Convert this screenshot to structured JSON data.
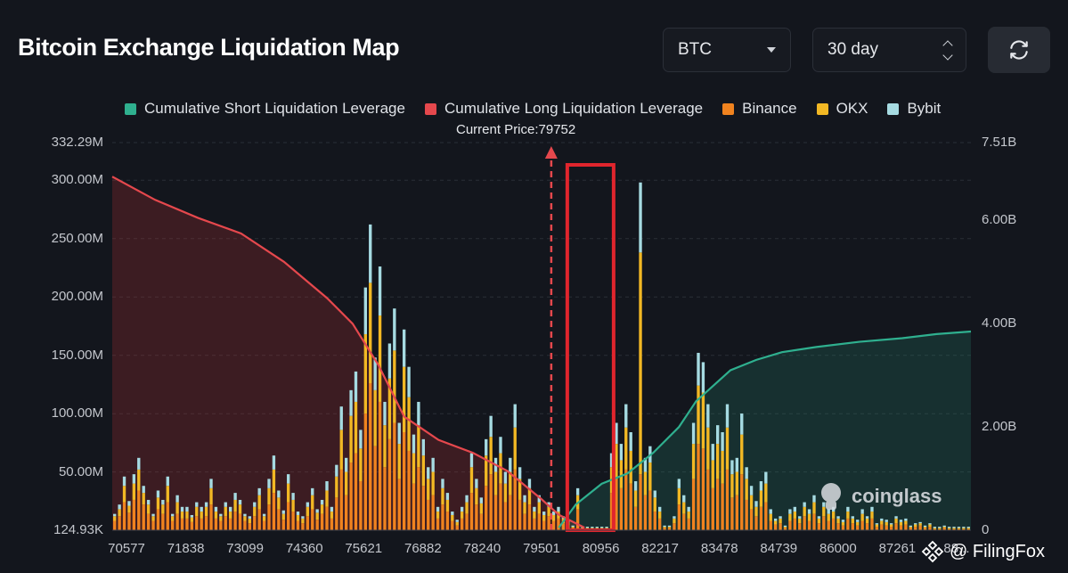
{
  "header": {
    "title": "Bitcoin Exchange Liquidation Map",
    "coin_select": "BTC",
    "range_select": "30 day"
  },
  "legend": [
    {
      "label": "Cumulative Short Liquidation Leverage",
      "color": "#2fb08f"
    },
    {
      "label": "Cumulative Long Liquidation Leverage",
      "color": "#e5484d"
    },
    {
      "label": "Binance",
      "color": "#f0831f"
    },
    {
      "label": "OKX",
      "color": "#f2b824"
    },
    {
      "label": "Bybit",
      "color": "#a6dbe2"
    }
  ],
  "current_price_label": "Current Price:79752",
  "watermarks": {
    "coinglass": "coinglass",
    "filingfox": "@ FilingFox"
  },
  "chart_data": {
    "type": "bar",
    "x_ticks": [
      "70577",
      "71838",
      "73099",
      "74360",
      "75621",
      "76882",
      "78240",
      "79501",
      "80956",
      "82217",
      "83478",
      "84739",
      "86000",
      "87261",
      "88..."
    ],
    "y_left_ticks": [
      "332.29M",
      "300.00M",
      "250.00M",
      "200.00M",
      "150.00M",
      "100.00M",
      "50.00M",
      "124.93K"
    ],
    "y_right_ticks": [
      "7.51B",
      "6.00B",
      "4.00B",
      "2.00B",
      "0"
    ],
    "ylim_left_millions": [
      0.125,
      332.29
    ],
    "ylim_right_billions": [
      0,
      7.51
    ],
    "current_price": 79752,
    "series": [
      {
        "name": "Binance",
        "color": "#f0831f",
        "values": [
          8,
          12,
          24,
          15,
          26,
          34,
          22,
          14,
          8,
          18,
          14,
          24,
          8,
          14,
          10,
          10,
          7,
          12,
          10,
          12,
          22,
          10,
          8,
          12,
          10,
          16,
          14,
          8,
          6,
          12,
          18,
          8,
          22,
          32,
          18,
          9,
          24,
          16,
          8,
          6,
          12,
          18,
          9,
          14,
          20,
          10,
          28,
          52,
          30,
          58,
          66,
          42,
          100,
          126,
          72,
          110,
          54,
          78,
          92,
          44,
          84,
          68,
          40,
          54,
          38,
          26,
          30,
          10,
          22,
          16,
          8,
          4,
          10,
          14,
          32,
          22,
          14,
          38,
          48,
          30,
          40,
          24,
          30,
          52,
          26,
          14,
          22,
          10,
          14,
          8,
          12,
          8,
          10,
          6,
          4,
          2,
          18,
          1,
          1,
          1,
          1,
          1,
          1,
          32,
          44,
          36,
          52,
          40,
          20,
          48,
          30,
          34,
          16,
          10,
          2,
          2,
          6,
          22,
          14,
          10,
          44,
          74,
          70,
          52,
          36,
          44,
          40,
          52,
          28,
          30,
          48,
          26,
          18,
          12,
          20,
          24,
          8,
          5,
          6,
          2,
          8,
          10,
          6,
          12,
          8,
          14,
          6,
          12,
          8,
          10,
          6,
          4,
          10,
          6,
          4,
          8,
          6,
          10,
          3,
          5,
          4,
          3,
          6,
          4,
          5,
          2,
          3,
          4,
          2,
          3,
          1,
          1,
          2,
          1,
          1,
          1,
          1,
          1
        ]
      },
      {
        "name": "OKX",
        "color": "#f2b824",
        "values": [
          4,
          6,
          14,
          6,
          14,
          18,
          10,
          8,
          4,
          10,
          8,
          14,
          4,
          10,
          6,
          6,
          4,
          8,
          6,
          8,
          14,
          6,
          4,
          8,
          6,
          10,
          8,
          4,
          4,
          8,
          12,
          4,
          14,
          20,
          10,
          5,
          16,
          10,
          5,
          4,
          8,
          12,
          6,
          8,
          14,
          6,
          18,
          34,
          20,
          40,
          44,
          28,
          68,
          86,
          48,
          74,
          36,
          52,
          62,
          30,
          56,
          46,
          26,
          36,
          26,
          18,
          20,
          6,
          14,
          10,
          5,
          3,
          6,
          10,
          22,
          14,
          9,
          26,
          32,
          20,
          26,
          16,
          20,
          36,
          18,
          10,
          14,
          6,
          10,
          5,
          8,
          5,
          6,
          4,
          3,
          1,
          12,
          1,
          1,
          1,
          1,
          1,
          1,
          22,
          30,
          24,
          36,
          28,
          14,
          190,
          20,
          24,
          12,
          6,
          1,
          1,
          4,
          14,
          10,
          6,
          30,
          50,
          48,
          36,
          24,
          30,
          28,
          36,
          20,
          20,
          34,
          18,
          12,
          8,
          14,
          16,
          6,
          3,
          4,
          1,
          6,
          6,
          4,
          8,
          6,
          10,
          4,
          8,
          6,
          6,
          4,
          3,
          6,
          4,
          3,
          6,
          4,
          6,
          2,
          3,
          3,
          2,
          4,
          3,
          3,
          1,
          2,
          2,
          1,
          2,
          1,
          1,
          1,
          1,
          1,
          1,
          1,
          1
        ]
      },
      {
        "name": "Bybit",
        "color": "#a6dbe2",
        "values": [
          2,
          4,
          8,
          4,
          8,
          10,
          6,
          4,
          2,
          6,
          4,
          8,
          2,
          6,
          4,
          4,
          2,
          4,
          4,
          4,
          8,
          4,
          2,
          4,
          4,
          6,
          4,
          2,
          2,
          4,
          6,
          2,
          8,
          12,
          6,
          3,
          8,
          6,
          3,
          2,
          4,
          6,
          3,
          4,
          8,
          4,
          10,
          20,
          12,
          22,
          26,
          16,
          40,
          50,
          28,
          42,
          20,
          30,
          36,
          18,
          32,
          26,
          16,
          20,
          14,
          10,
          12,
          4,
          8,
          6,
          3,
          2,
          4,
          6,
          12,
          8,
          5,
          14,
          18,
          12,
          14,
          10,
          12,
          20,
          10,
          6,
          8,
          4,
          6,
          3,
          4,
          3,
          4,
          2,
          2,
          1,
          6,
          1,
          1,
          1,
          1,
          1,
          1,
          12,
          18,
          14,
          20,
          16,
          8,
          60,
          12,
          14,
          6,
          4,
          1,
          1,
          2,
          8,
          6,
          4,
          18,
          28,
          26,
          20,
          14,
          16,
          16,
          20,
          12,
          12,
          18,
          10,
          8,
          5,
          8,
          10,
          4,
          2,
          2,
          1,
          4,
          4,
          2,
          4,
          4,
          6,
          2,
          4,
          4,
          4,
          2,
          2,
          4,
          2,
          2,
          4,
          2,
          4,
          1,
          2,
          2,
          1,
          2,
          2,
          2,
          1,
          1,
          1,
          1,
          1,
          1,
          1,
          1,
          1,
          1,
          1,
          1,
          1
        ]
      },
      {
        "name": "Cumulative Long Liquidation Leverage",
        "color": "#e5484d",
        "type": "area",
        "x_fraction": [
          0,
          0.05,
          0.1,
          0.15,
          0.2,
          0.25,
          0.28,
          0.31,
          0.34,
          0.38,
          0.42,
          0.46,
          0.5,
          0.52,
          0.55
        ],
        "values_billions": [
          6.85,
          6.4,
          6.05,
          5.75,
          5.2,
          4.5,
          4.0,
          3.2,
          2.2,
          1.75,
          1.5,
          1.15,
          0.6,
          0.3,
          0.05
        ]
      },
      {
        "name": "Cumulative Short Liquidation Leverage",
        "color": "#2fb08f",
        "type": "area",
        "x_fraction": [
          0.52,
          0.54,
          0.57,
          0.6,
          0.63,
          0.66,
          0.68,
          0.7,
          0.72,
          0.75,
          0.78,
          0.82,
          0.87,
          0.92,
          0.96,
          1.0
        ],
        "values_billions": [
          0.05,
          0.5,
          0.9,
          1.1,
          1.5,
          2.0,
          2.5,
          2.8,
          3.1,
          3.3,
          3.45,
          3.55,
          3.65,
          3.72,
          3.8,
          3.85
        ]
      }
    ]
  }
}
